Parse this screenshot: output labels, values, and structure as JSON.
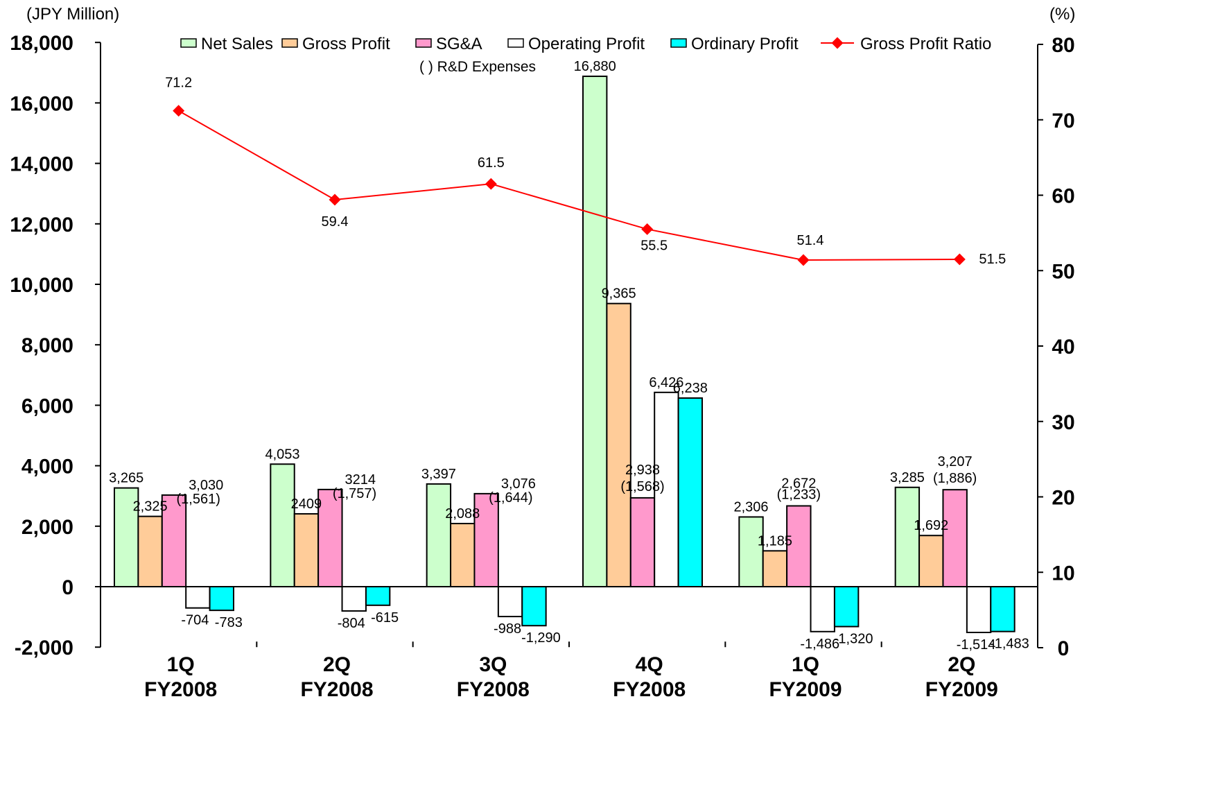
{
  "chart_data": {
    "type": "bar",
    "left_axis_unit": "(JPY Million)",
    "right_axis_unit": "(%)",
    "categories": [
      {
        "line1": "1Q",
        "line2": "FY2008"
      },
      {
        "line1": "2Q",
        "line2": "FY2008"
      },
      {
        "line1": "3Q",
        "line2": "FY2008"
      },
      {
        "line1": "4Q",
        "line2": "FY2008"
      },
      {
        "line1": "1Q",
        "line2": "FY2009"
      },
      {
        "line1": "2Q",
        "line2": "FY2009"
      }
    ],
    "y_left": {
      "min": -2000,
      "max": 18000,
      "step": 2000,
      "tick_labels": [
        "-2,000",
        "0",
        "2,000",
        "4,000",
        "6,000",
        "8,000",
        "10,000",
        "12,000",
        "14,000",
        "16,000",
        "18,000"
      ]
    },
    "y_right": {
      "min": 0,
      "max": 80,
      "step": 10,
      "tick_labels": [
        "0",
        "10",
        "20",
        "30",
        "40",
        "50",
        "60",
        "70",
        "80"
      ]
    },
    "series": [
      {
        "name": "Net Sales",
        "type": "bar",
        "axis": "left",
        "color": "#ccffcc",
        "values": [
          3265,
          4053,
          3397,
          16880,
          2306,
          3285
        ],
        "labels": [
          "3,265",
          "4,053",
          "3,397",
          "16,880",
          "2,306",
          "3,285"
        ]
      },
      {
        "name": "Gross Profit",
        "type": "bar",
        "axis": "left",
        "color": "#ffcc99",
        "values": [
          2325,
          2409,
          2088,
          9365,
          1185,
          1692
        ],
        "labels": [
          "2,325",
          "2409",
          "2,088",
          "9,365",
          "1,185",
          "1,692"
        ]
      },
      {
        "name": "SG&A",
        "type": "bar",
        "axis": "left",
        "color": "#ff99cc",
        "values": [
          3030,
          3214,
          3076,
          2938,
          2672,
          3207
        ],
        "labels": [
          "3,030",
          "3214",
          "3,076",
          "2,938",
          "2,672",
          "3,207"
        ]
      },
      {
        "name": "Operating Profit",
        "type": "bar",
        "axis": "left",
        "color": "#ffffff",
        "values": [
          -704,
          -804,
          -988,
          6426,
          -1486,
          -1514
        ],
        "labels": [
          "-704",
          "-804",
          "-988",
          "6,426",
          "-1,486",
          "-1,514"
        ]
      },
      {
        "name": "Ordinary Profit",
        "type": "bar",
        "axis": "left",
        "color": "#00ffff",
        "values": [
          -783,
          -615,
          -1290,
          6238,
          -1320,
          -1483
        ],
        "labels": [
          "-783",
          "-615",
          "-1,290",
          "6,238",
          "-1,320",
          "-1,483"
        ]
      },
      {
        "name": "Gross Profit Ratio",
        "type": "line",
        "axis": "right",
        "color": "#ff0000",
        "values": [
          71.2,
          59.4,
          61.5,
          55.5,
          51.4,
          51.5
        ],
        "labels": [
          "71.2",
          "59.4",
          "61.5",
          "55.5",
          "51.4",
          "51.5"
        ]
      }
    ],
    "rd_expenses": {
      "legend_label": "(   ) R&D Expenses",
      "values": [
        1561,
        1757,
        1644,
        1568,
        1233,
        1886
      ],
      "labels": [
        "(1,561)",
        "(1,757)",
        "(1,644)",
        "(1,568)",
        "(1,233)",
        "(1,886)"
      ]
    },
    "legend_position": "top",
    "grid": false
  }
}
